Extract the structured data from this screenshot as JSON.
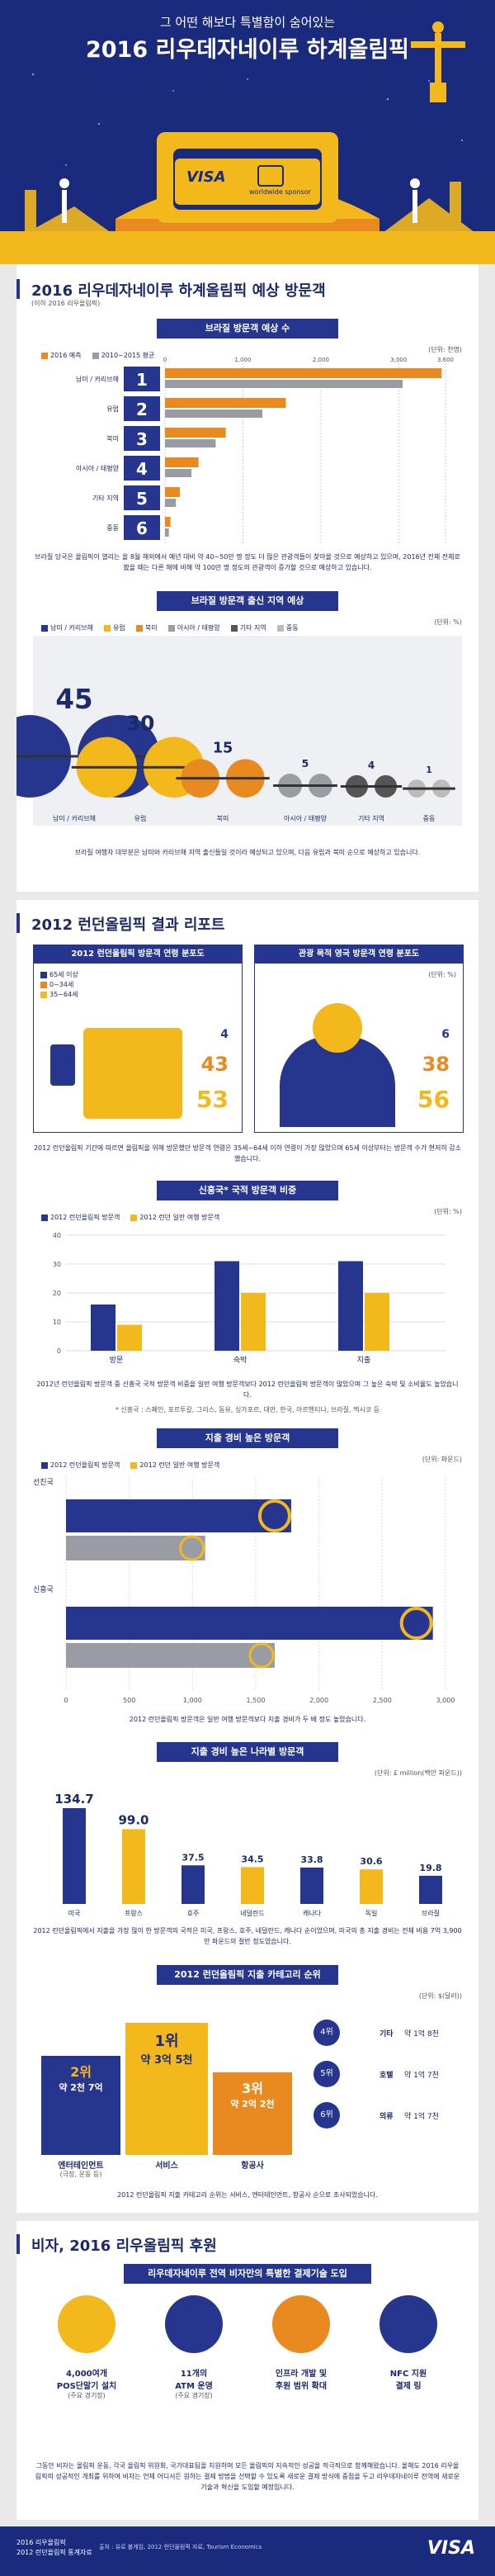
{
  "hero": {
    "subtitle": "그 어떤 해보다 특별함이 숨어있는",
    "title": "2016 리우데자네이루 하계올림픽",
    "card_brand": "VISA",
    "card_caption": "worldwide sponsor"
  },
  "s1": {
    "title": "2016 리우데자네이루 하계올림픽 예상 방문객",
    "note": "(이하 2016 리우올림픽)",
    "chart1_title": "브라질 방문객 예상 수",
    "legend": [
      "2016 예측",
      "2010~2015 평균"
    ],
    "unit": "(단위: 천명)",
    "ticks": [
      "0",
      "1,000",
      "2,000",
      "3,000",
      "3,600"
    ],
    "rows": [
      {
        "rank": "1",
        "label": "남미 / 카리브해",
        "forecast": 3550,
        "avg": 3050
      },
      {
        "rank": "2",
        "label": "유럽",
        "forecast": 1550,
        "avg": 1250
      },
      {
        "rank": "3",
        "label": "북미",
        "forecast": 780,
        "avg": 650
      },
      {
        "rank": "4",
        "label": "아시아 / 태평양",
        "forecast": 430,
        "avg": 340
      },
      {
        "rank": "5",
        "label": "기타 지역",
        "forecast": 190,
        "avg": 140
      },
      {
        "rank": "6",
        "label": "중동",
        "forecast": 70,
        "avg": 50
      }
    ],
    "para": "브라질 당국은 올림픽이 열리는 올 8월 해외에서 예년 대비 약 40~50만 명 정도 더 많은 관광객들이 찾아올 것으로 예상하고 있으며, 2016년 전체 전체로 봤을 때는 다른 해에 비해 약 100만 명 정도의 관광객이 증가할 것으로 예상하고 있습니다.",
    "chart2_title": "브라질 방문객 출신 지역 예상",
    "legend2": [
      "남미 / 카리브해",
      "유럽",
      "북미",
      "아시아 / 태평양",
      "기타 지역",
      "중동"
    ],
    "unit2": "(단위: %)",
    "regions": [
      {
        "label": "남미 / 카리브해",
        "value": "45"
      },
      {
        "label": "유럽",
        "value": "30"
      },
      {
        "label": "북미",
        "value": "15"
      },
      {
        "label": "아시아 / 태평양",
        "value": "5"
      },
      {
        "label": "기타 지역",
        "value": "4"
      },
      {
        "label": "중동",
        "value": "1"
      }
    ],
    "para2": "브라질 여행자 대부분은 남미와 카리브해 지역 출신들일 것이라 예상되고 있으며, 다음 유럽과 북미 순으로 예상하고 있습니다."
  },
  "s2": {
    "title": "2012 런던올림픽 결과 리포트",
    "age_left_title": "2012 런던올림픽 방문객 연령 분포도",
    "age_right_title": "관광 목적 영국 방문객 연령 분포도",
    "age_legend": [
      "65세 이상",
      "0~34세",
      "35~64세"
    ],
    "unit": "(단위: %)",
    "left_values": [
      "4",
      "43",
      "53"
    ],
    "right_values": [
      "6",
      "38",
      "56"
    ],
    "para": "2012 런던올림픽 기간에 따르면 올림픽을 위해 방문했던 방문객 연령은 35세~64세 이하 연령이 가장 많았으며 65세 이상부터는 방문객 수가 현저히 감소했습니다.",
    "emerging_title": "신흥국* 국적 방문객 비중",
    "emerging_legend": [
      "2012 런던올림픽 방문객",
      "2012 런던 일반 여행 방문객"
    ],
    "emerging_unit": "(단위: %)",
    "emerging_yticks": [
      "40",
      "30",
      "20",
      "10",
      "0"
    ],
    "emerging_cats": [
      "방문",
      "숙박",
      "지출"
    ],
    "emerging_olympic": [
      16,
      31,
      31
    ],
    "emerging_general": [
      9,
      20,
      20
    ],
    "emerging_para": "2012년 런던올림픽 방문객 중 신흥국 국적 방문객 비중을 일반 여행 방문객보다 2012 런던올림픽 방문객이 많았으며 그 높은 숙박 및 소비율도 높았습니다.",
    "emerging_note": "* 신흥국 : 스페인, 포르투갈, 그리스, 동유, 싱가포르, 대만, 한국, 아르헨티나, 브라질, 멕시코 등",
    "spend_title": "지출 경비 높은 방문객",
    "spend_legend": [
      "2012 런던올림픽 방문객",
      "2012 런던 일반 여행 방문객"
    ],
    "spend_unit": "(단위: 파운드)",
    "spend_ticks": [
      "0",
      "500",
      "1,000",
      "1,500",
      "2,000",
      "2,500",
      "3,000"
    ],
    "spend_rows": [
      {
        "label": "선진국",
        "olympic": 1780,
        "general": 1100
      },
      {
        "label": "신흥국",
        "olympic": 2900,
        "general": 1650
      }
    ],
    "spend_para": "2012 런던올림픽 방문객은 일반 여행 방문객보다 지출 경비가 두 배 정도 높았습니다.",
    "country_title": "지출 경비 높은 나라별 방문객",
    "country_unit": "(단위: £ million(백만 파운드))",
    "countries": [
      {
        "label": "미국",
        "value": "134.7"
      },
      {
        "label": "프랑스",
        "value": "99.0"
      },
      {
        "label": "호주",
        "value": "37.5"
      },
      {
        "label": "네덜란드",
        "value": "34.5"
      },
      {
        "label": "캐나다",
        "value": "33.8"
      },
      {
        "label": "독일",
        "value": "30.6"
      },
      {
        "label": "브라질",
        "value": "19.8"
      }
    ],
    "country_para": "2012 런던올림픽에서 지출을 가장 많이 한 방문객의 국적은 미국, 프랑스, 호주, 네덜란드, 캐나다 순이었으며, 미국의 총 지출 경비는 전체 비용 7억 3,900만 파운드의 절반 정도였습니다.",
    "cat_title": "2012 런던올림픽 지출 카테고리 순위",
    "cat_unit": "(단위: $(달러))",
    "podium": [
      {
        "rank": "2위",
        "amount": "약 2천 7억",
        "label": "엔터테인먼트",
        "sub": "(극장, 운동 등)"
      },
      {
        "rank": "1위",
        "amount": "약 3억 5천",
        "label": "서비스",
        "sub": ""
      },
      {
        "rank": "3위",
        "amount": "약 2억 2천",
        "label": "항공사",
        "sub": ""
      }
    ],
    "others": [
      {
        "rank": "4위",
        "label": "기타",
        "amount": "약 1억 8천"
      },
      {
        "rank": "5위",
        "label": "호텔",
        "amount": "약 1억 7천"
      },
      {
        "rank": "6위",
        "label": "의류",
        "amount": "약 1억 7천"
      }
    ],
    "cat_para": "2012 런던올림픽 지출 카테고리 순위는 서비스, 엔터테인먼트, 항공사 순으로 조사되었습니다."
  },
  "s3": {
    "title": "비자, 2016 리우올림픽 후원",
    "subtitle": "리우데자네이루 전역 비자만의 특별한 결제기술 도입",
    "items": [
      {
        "main": "4,000여개",
        "main2": "POS단말기 설치",
        "sub": "(주요 경기장)"
      },
      {
        "main": "11개의",
        "main2": "ATM 운영",
        "sub": "(주요 경기장)"
      },
      {
        "main": "인프라 개발 및",
        "main2": "후원 범위 확대",
        "sub": ""
      },
      {
        "main": "NFC 지원",
        "main2": "결제 링",
        "sub": ""
      }
    ],
    "para": "그동안 비자는 올림픽 운동, 각국 올림픽 위원회, 국가대표팀을 지원하며 모든 올림픽의 지속적인 성공을 적극적으로 함께해왔습니다. 올해도 2016 리우올림픽의 성공적인 개최를 위하여 비자는 언제 어디서든 원하는 결제 방법을 선택할 수 있도록 새로운 결제 방식에 중점을 두고 리우데자네이루 전역에 새로운 기술과 혁신을 도입할 예정입니다."
  },
  "footer": {
    "left_line1": "2016 리우올림픽",
    "left_line2": "2012 런던올림픽 통계자료",
    "source": "출처 : 유로 볼게임, 2012 런던올림픽 자료, Tourism Economics",
    "logo": "VISA"
  },
  "colors": {
    "navy": "#1a2a7c",
    "blue": "#26358d",
    "yellow": "#f3b81c",
    "orange": "#e88a1f",
    "gray": "#9a9ca3"
  }
}
